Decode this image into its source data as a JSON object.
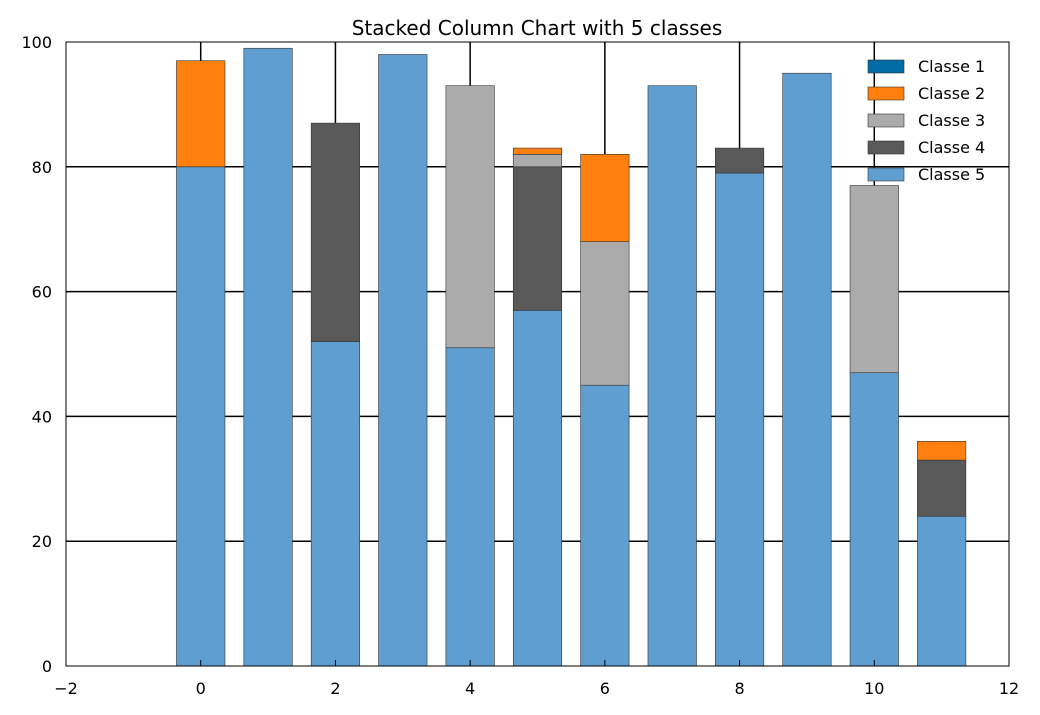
{
  "chart_data": {
    "type": "bar",
    "stacked": true,
    "title": "Stacked Column Chart with 5 classes",
    "xlabel": "",
    "ylabel": "",
    "xlim": [
      -2,
      12
    ],
    "ylim": [
      0,
      100
    ],
    "x_ticks": [
      -2,
      0,
      2,
      4,
      6,
      8,
      10,
      12
    ],
    "x_tick_labels": [
      "−2",
      "0",
      "2",
      "4",
      "6",
      "8",
      "10",
      "12"
    ],
    "y_ticks": [
      0,
      20,
      40,
      60,
      80,
      100
    ],
    "y_tick_labels": [
      "0",
      "20",
      "40",
      "60",
      "80",
      "100"
    ],
    "grid": true,
    "legend_position": "top-right",
    "x": [
      0,
      1,
      2,
      3,
      4,
      5,
      6,
      7,
      8,
      9,
      10,
      11
    ],
    "bar_width": 0.72,
    "series": [
      {
        "name": "Classe 5",
        "color": "#5f9ed1",
        "values": [
          80,
          99,
          52,
          98,
          51,
          57,
          45,
          93,
          79,
          95,
          47,
          24
        ]
      },
      {
        "name": "Classe 4",
        "color": "#595959",
        "values": [
          0,
          0,
          35,
          0,
          0,
          23,
          0,
          0,
          4,
          0,
          0,
          9
        ]
      },
      {
        "name": "Classe 3",
        "color": "#ababab",
        "values": [
          0,
          0,
          0,
          0,
          42,
          2,
          23,
          0,
          0,
          0,
          30,
          0
        ]
      },
      {
        "name": "Classe 2",
        "color": "#ff800e",
        "values": [
          17,
          0,
          0,
          0,
          0,
          1,
          14,
          0,
          0,
          0,
          0,
          3
        ]
      },
      {
        "name": "Classe 1",
        "color": "#006ba4",
        "values": [
          0,
          0,
          0,
          0,
          0,
          0,
          0,
          0,
          0,
          0,
          0,
          0
        ]
      }
    ],
    "legend_order": [
      "Classe 1",
      "Classe 2",
      "Classe 3",
      "Classe 4",
      "Classe 5"
    ]
  }
}
